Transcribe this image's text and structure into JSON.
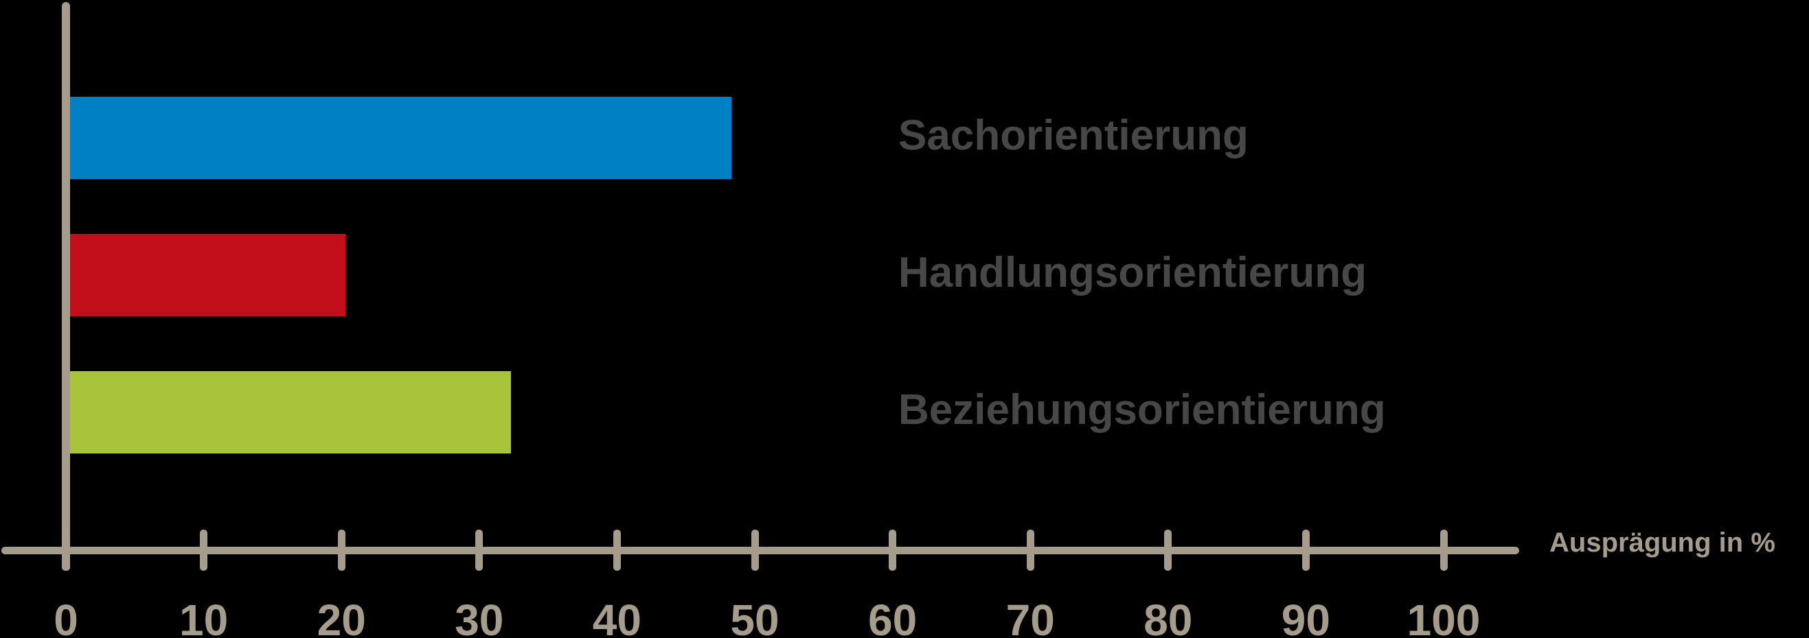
{
  "page": {
    "background_color": "#000000"
  },
  "chart_data": {
    "type": "bar",
    "orientation": "horizontal",
    "categories": [
      "Sachorientierung",
      "Handlungsorientierung",
      "Beziehungsorientierung"
    ],
    "values": [
      48,
      20,
      32
    ],
    "series": [
      {
        "name": "Sachorientierung",
        "value": 48,
        "color": "#0080c4"
      },
      {
        "name": "Handlungsorientierung",
        "value": 20,
        "color": "#c20e1a"
      },
      {
        "name": "Beziehungsorientierung",
        "value": 32,
        "color": "#a8c43a"
      }
    ],
    "xlabel": "Ausprägung in %",
    "xlim": [
      0,
      100
    ],
    "xticks": [
      0,
      10,
      20,
      30,
      40,
      50,
      60,
      70,
      80,
      90,
      100
    ],
    "grid": false,
    "legend": "none",
    "value_labels_shown": false,
    "axis_color": "#a59c8b",
    "category_label_color": "#474747",
    "background_color": "#000000"
  }
}
